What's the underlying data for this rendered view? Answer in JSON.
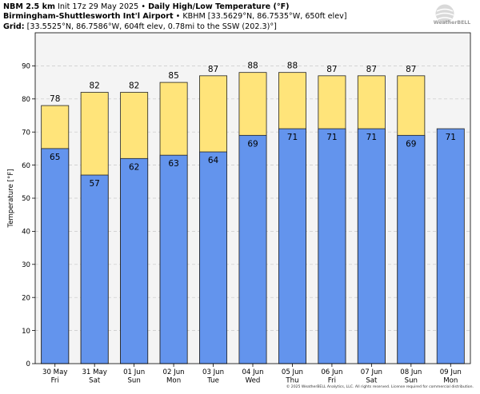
{
  "header": {
    "model": "NBM 2.5 km",
    "init": "Init 17z 29 May 2025",
    "sep": "•",
    "product": "Daily High/Low Temperature (°F)",
    "station_name": "Birmingham-Shuttlesworth Int'l Airport",
    "station_info": "KBHM [33.5629°N, 86.7535°W, 650ft elev]",
    "grid_label": "Grid:",
    "grid_info": "[33.5525°N, 86.7586°W, 604ft elev, 0.78mi to the SSW (202.3)°]"
  },
  "logo": {
    "text": "WeatherBELL"
  },
  "footer": {
    "text": "© 2025 WeatherBELL Analytics, LLC. All rights reserved. License required for commercial distribution."
  },
  "chart_data": {
    "type": "bar",
    "categories": [
      "30 May\nFri",
      "31 May\nSat",
      "01 Jun\nSun",
      "02 Jun\nMon",
      "03 Jun\nTue",
      "04 Jun\nWed",
      "05 Jun\nThu",
      "06 Jun\nFri",
      "07 Jun\nSat",
      "08 Jun\nSun",
      "09 Jun\nMon"
    ],
    "series": [
      {
        "values": [
          78,
          82,
          82,
          85,
          87,
          88,
          88,
          87,
          87,
          87,
          null
        ],
        "color": "#ffe47a"
      },
      {
        "values": [
          65,
          57,
          62,
          63,
          64,
          69,
          71,
          71,
          71,
          69,
          71
        ],
        "color": "#6394ed"
      }
    ],
    "data_labels_high": [
      "78",
      "82",
      "82",
      "85",
      "87",
      "88",
      "88",
      "87",
      "87",
      "87",
      ""
    ],
    "data_labels_low": [
      "65",
      "57",
      "62",
      "63",
      "64",
      "69",
      "71",
      "71",
      "71",
      "69",
      "71"
    ],
    "ylabel": "Temperature [°F]",
    "ylim": [
      0,
      100
    ],
    "yticks": [
      0,
      10,
      20,
      30,
      40,
      50,
      60,
      70,
      80,
      90
    ],
    "grid": true,
    "plot_background": "#f4f4f4"
  }
}
